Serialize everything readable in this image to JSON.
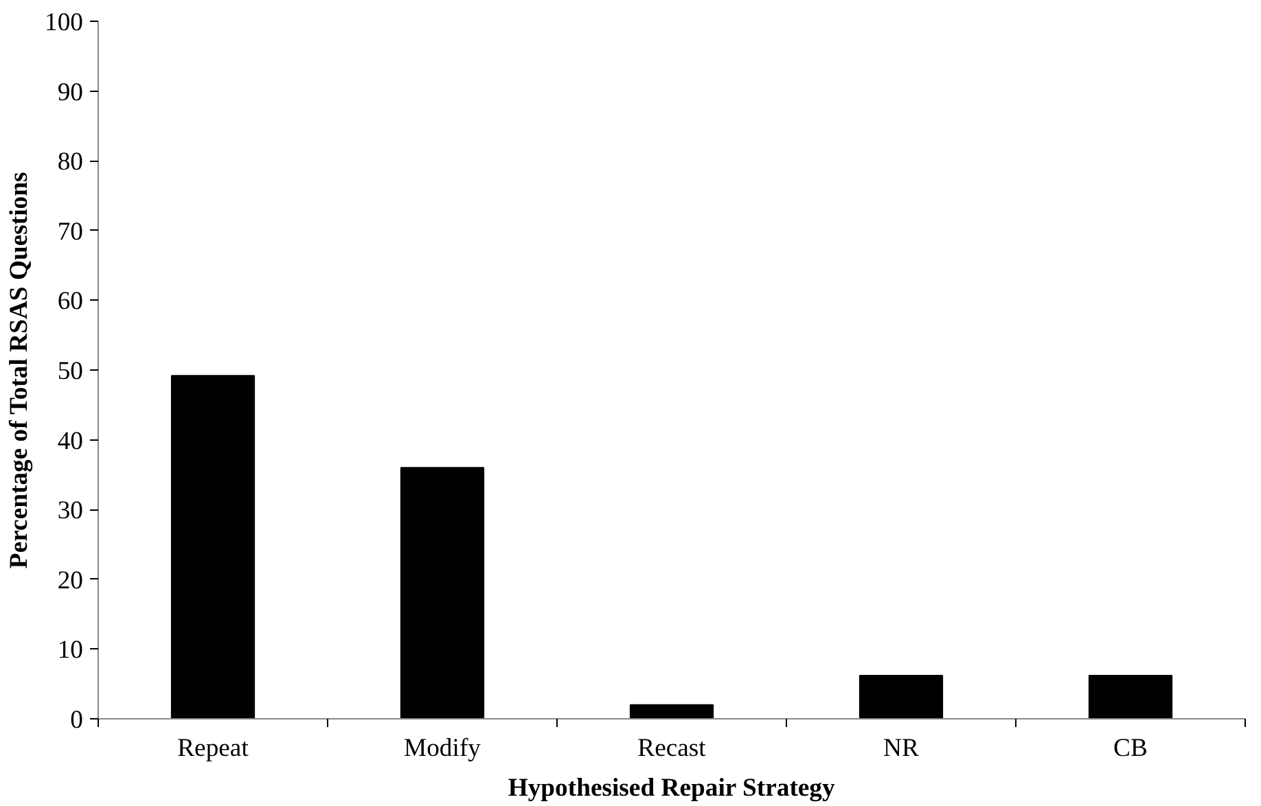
{
  "chart_data": {
    "type": "bar",
    "xlabel": "Hypothesised Repair Strategy",
    "ylabel": "Percentage of Total RSAS Questions",
    "categories": [
      "Repeat",
      "Modify",
      "Recast",
      "NR",
      "CB"
    ],
    "values": [
      49.2,
      36.0,
      2.0,
      6.2,
      6.2
    ],
    "color": "#000000",
    "ylim": [
      0,
      100
    ],
    "yticks": [
      0,
      10,
      20,
      30,
      40,
      50,
      60,
      70,
      80,
      90,
      100
    ],
    "grid": false
  }
}
